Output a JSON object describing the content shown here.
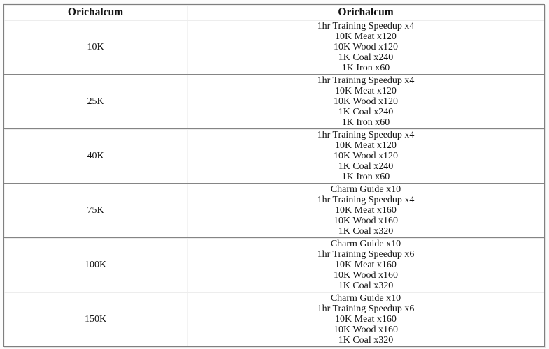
{
  "page": {
    "background_color": "#fcfcfc",
    "table_border_color": "#7f7f7f"
  },
  "table": {
    "headers": [
      "Orichalcum",
      "Orichalcum"
    ],
    "rows": [
      {
        "amount": "10K",
        "rewards": [
          "1hr Training Speedup x4",
          "10K Meat x120",
          "10K Wood x120",
          "1K Coal x240",
          "1K Iron x60"
        ]
      },
      {
        "amount": "25K",
        "rewards": [
          "1hr Training Speedup x4",
          "10K Meat x120",
          "10K Wood x120",
          "1K Coal x240",
          "1K Iron x60"
        ]
      },
      {
        "amount": "40K",
        "rewards": [
          "1hr Training Speedup x4",
          "10K Meat x120",
          "10K Wood x120",
          "1K Coal x240",
          "1K Iron x60"
        ]
      },
      {
        "amount": "75K",
        "rewards": [
          "Charm Guide x10",
          "1hr Training Speedup x4",
          "10K Meat x160",
          "10K Wood x160",
          "1K Coal x320"
        ]
      },
      {
        "amount": "100K",
        "rewards": [
          "Charm Guide x10",
          "1hr Training Speedup x6",
          "10K Meat x160",
          "10K Wood x160",
          "1K Coal x320"
        ]
      },
      {
        "amount": "150K",
        "rewards": [
          "Charm Guide x10",
          "1hr Training Speedup x6",
          "10K Meat x160",
          "10K Wood x160",
          "1K Coal x320"
        ]
      }
    ]
  }
}
